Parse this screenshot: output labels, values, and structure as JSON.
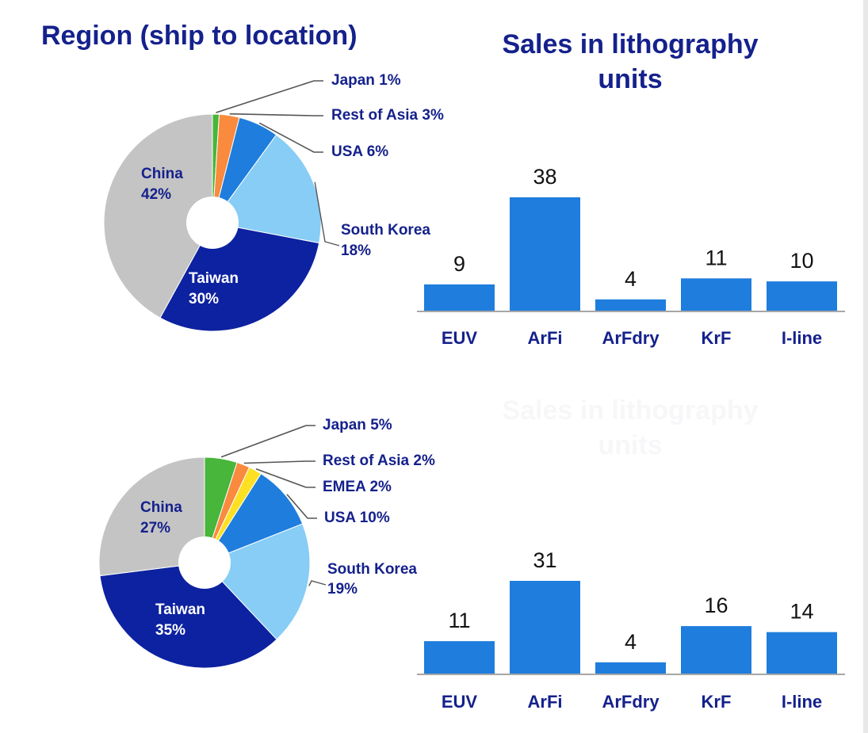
{
  "titles": {
    "region": "Region (ship to location)",
    "sales_line1": "Sales in lithography",
    "sales_line2": "units"
  },
  "colors": {
    "title": "#15218c",
    "bar": "#1e7ddd",
    "axis": "#a6a6a6",
    "china": "#c4c4c4",
    "taiwan": "#0d22a0",
    "south_korea": "#87cdf5",
    "usa": "#1e7ddd",
    "emea": "#fde024",
    "rest_of_asia": "#f98a3e",
    "japan": "#47b63a"
  },
  "chart_data": [
    {
      "type": "pie",
      "title": "Region (ship to location)",
      "slices": [
        {
          "label": "Japan",
          "value": 1,
          "text": "Japan 1%",
          "color": "#47b63a"
        },
        {
          "label": "Rest of Asia",
          "value": 3,
          "text": "Rest of Asia 3%",
          "color": "#f98a3e"
        },
        {
          "label": "USA",
          "value": 6,
          "text": "USA 6%",
          "color": "#1e7ddd"
        },
        {
          "label": "South Korea",
          "value": 18,
          "text": "South Korea",
          "pct": "18%",
          "color": "#87cdf5"
        },
        {
          "label": "Taiwan",
          "value": 30,
          "text": "Taiwan",
          "pct": "30%",
          "color": "#0d22a0"
        },
        {
          "label": "China",
          "value": 42,
          "text": "China",
          "pct": "42%",
          "color": "#c4c4c4"
        }
      ]
    },
    {
      "type": "bar",
      "title": "Sales in lithography units",
      "categories": [
        "EUV",
        "ArFi",
        "ArFdry",
        "KrF",
        "I-line"
      ],
      "values": [
        9,
        38,
        4,
        11,
        10
      ]
    },
    {
      "type": "pie",
      "slices": [
        {
          "label": "Japan",
          "value": 5,
          "text": "Japan 5%",
          "color": "#47b63a"
        },
        {
          "label": "Rest of Asia",
          "value": 2,
          "text": "Rest of Asia 2%",
          "color": "#f98a3e"
        },
        {
          "label": "EMEA",
          "value": 2,
          "text": "EMEA 2%",
          "color": "#fde024"
        },
        {
          "label": "USA",
          "value": 10,
          "text": "USA 10%",
          "color": "#1e7ddd"
        },
        {
          "label": "South Korea",
          "value": 19,
          "text": "South Korea",
          "pct": "19%",
          "color": "#87cdf5"
        },
        {
          "label": "Taiwan",
          "value": 35,
          "text": "Taiwan",
          "pct": "35%",
          "color": "#0d22a0"
        },
        {
          "label": "China",
          "value": 27,
          "text": "China",
          "pct": "27%",
          "color": "#c4c4c4"
        }
      ]
    },
    {
      "type": "bar",
      "title": "Sales in lithography units",
      "categories": [
        "EUV",
        "ArFi",
        "ArFdry",
        "KrF",
        "I-line"
      ],
      "values": [
        11,
        31,
        4,
        16,
        14
      ]
    }
  ]
}
